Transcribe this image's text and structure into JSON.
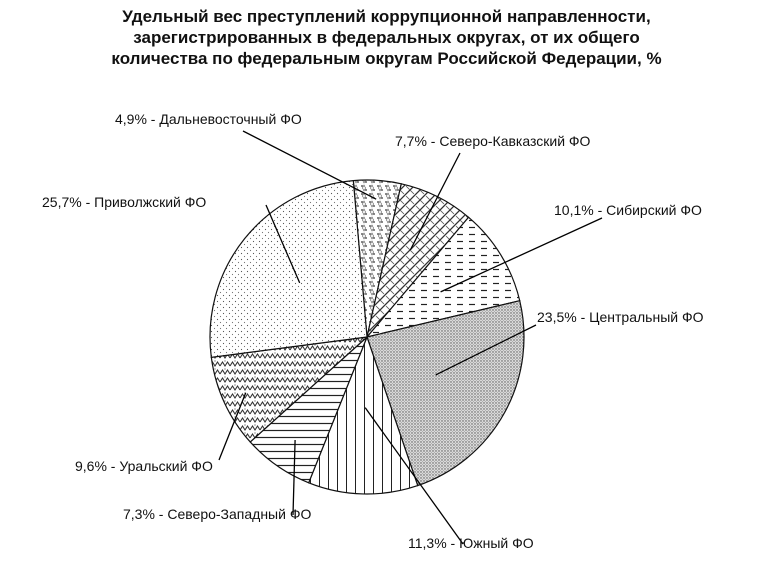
{
  "title_lines": [
    "Удельный вес преступлений коррупционной направленности,",
    "зарегистрированных в федеральных округах, от их общего",
    "количества по федеральным округам Российской Федерации, %"
  ],
  "chart_data": {
    "type": "pie",
    "title": "Удельный вес преступлений коррупционной направленности, зарегистрированных в федеральных округах, от их общего количества по федеральным округам Российской Федерации, %",
    "unit": "%",
    "slices": [
      {
        "name": "Дальневосточный ФО",
        "value": 4.9,
        "label": "4,9% - Дальневосточный ФО",
        "pattern": "dots-diamond"
      },
      {
        "name": "Северо-Кавказский ФО",
        "value": 7.7,
        "label": "7,7% - Северо-Кавказский ФО",
        "pattern": "brick-weave"
      },
      {
        "name": "Сибирский ФО",
        "value": 10.1,
        "label": "10,1% - Сибирский ФО",
        "pattern": "horizontal-dashes"
      },
      {
        "name": "Центральный ФО",
        "value": 23.5,
        "label": "23,5% - Центральный ФО",
        "pattern": "dense-dots"
      },
      {
        "name": "Южный ФО",
        "value": 11.3,
        "label": "11,3% - Южный ФО",
        "pattern": "vertical-lines"
      },
      {
        "name": "Северо-Западный ФО",
        "value": 7.3,
        "label": "7,3% - Северо-Западный ФО",
        "pattern": "horizontal-lines"
      },
      {
        "name": "Уральский ФО",
        "value": 9.6,
        "label": "9,6% - Уральский ФО",
        "pattern": "zigzag"
      },
      {
        "name": "Приволжский ФО",
        "value": 25.7,
        "label": "25,7% - Приволжский ФО",
        "pattern": "sparse-dots"
      }
    ]
  }
}
